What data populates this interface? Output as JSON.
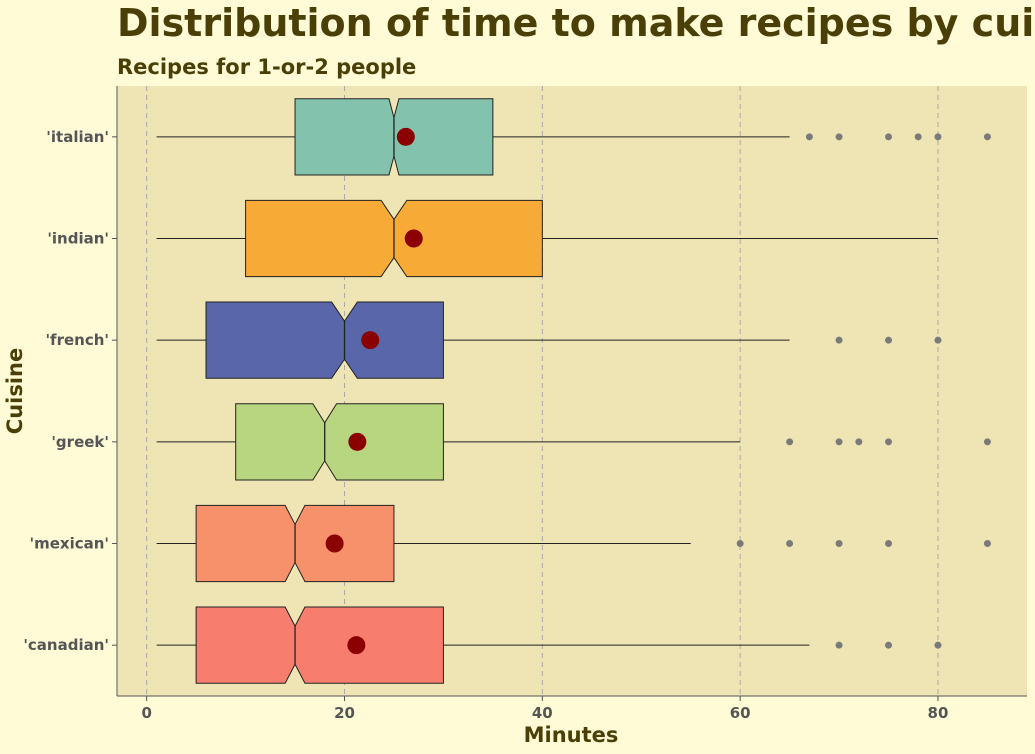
{
  "chart_data": {
    "type": "boxplot",
    "title": "Distribution of time to make recipes by cuisine",
    "subtitle": "Recipes for 1-or-2 people",
    "xlabel": "Minutes",
    "ylabel": "Cuisine",
    "xlim": [
      -3,
      89
    ],
    "x_ticks": [
      0,
      20,
      40,
      60,
      80
    ],
    "x_tick_labels": [
      "0",
      "20",
      "40",
      "60",
      "80"
    ],
    "grid": "vertical dashed at major ticks",
    "notched": true,
    "categories": [
      "'italian'",
      "'indian'",
      "'french'",
      "'greek'",
      "'mexican'",
      "'canadian'"
    ],
    "series": [
      {
        "category": "'italian'",
        "color": "#83c3ad",
        "whisker_low": 1,
        "q1": 15,
        "median": 25,
        "q3": 35,
        "whisker_high": 65,
        "mean": 26.2,
        "notch_low": 24.5,
        "notch_high": 25.5,
        "outliers": [
          67,
          70,
          75,
          78,
          80,
          85
        ]
      },
      {
        "category": "'indian'",
        "color": "#f7aa36",
        "whisker_low": 1,
        "q1": 10,
        "median": 25,
        "q3": 40,
        "whisker_high": 80,
        "mean": 27.0,
        "notch_low": 23.7,
        "notch_high": 26.3,
        "outliers": []
      },
      {
        "category": "'french'",
        "color": "#5966aa",
        "whisker_low": 1,
        "q1": 6,
        "median": 20,
        "q3": 30,
        "whisker_high": 65,
        "mean": 22.6,
        "notch_low": 18.7,
        "notch_high": 21.3,
        "outliers": [
          70,
          75,
          80
        ]
      },
      {
        "category": "'greek'",
        "color": "#b8d57f",
        "whisker_low": 1,
        "q1": 9,
        "median": 18,
        "q3": 30,
        "whisker_high": 60,
        "mean": 21.3,
        "notch_low": 16.8,
        "notch_high": 19.2,
        "outliers": [
          65,
          70,
          72,
          75,
          85
        ]
      },
      {
        "category": "'mexican'",
        "color": "#f6916c",
        "whisker_low": 1,
        "q1": 5,
        "median": 15,
        "q3": 25,
        "whisker_high": 55,
        "mean": 19.0,
        "notch_low": 14.0,
        "notch_high": 16.0,
        "outliers": [
          60,
          65,
          70,
          75,
          85
        ]
      },
      {
        "category": "'canadian'",
        "color": "#f77e6f",
        "whisker_low": 1,
        "q1": 5,
        "median": 15,
        "q3": 30,
        "whisker_high": 67,
        "mean": 21.2,
        "notch_low": 14.0,
        "notch_high": 16.0,
        "outliers": [
          70,
          75,
          80
        ]
      }
    ],
    "mean_marker_color": "#8b0000",
    "outlier_color": "#7a7a7a",
    "panel_background": "#efe5b4",
    "page_background": "#fffbd6"
  }
}
